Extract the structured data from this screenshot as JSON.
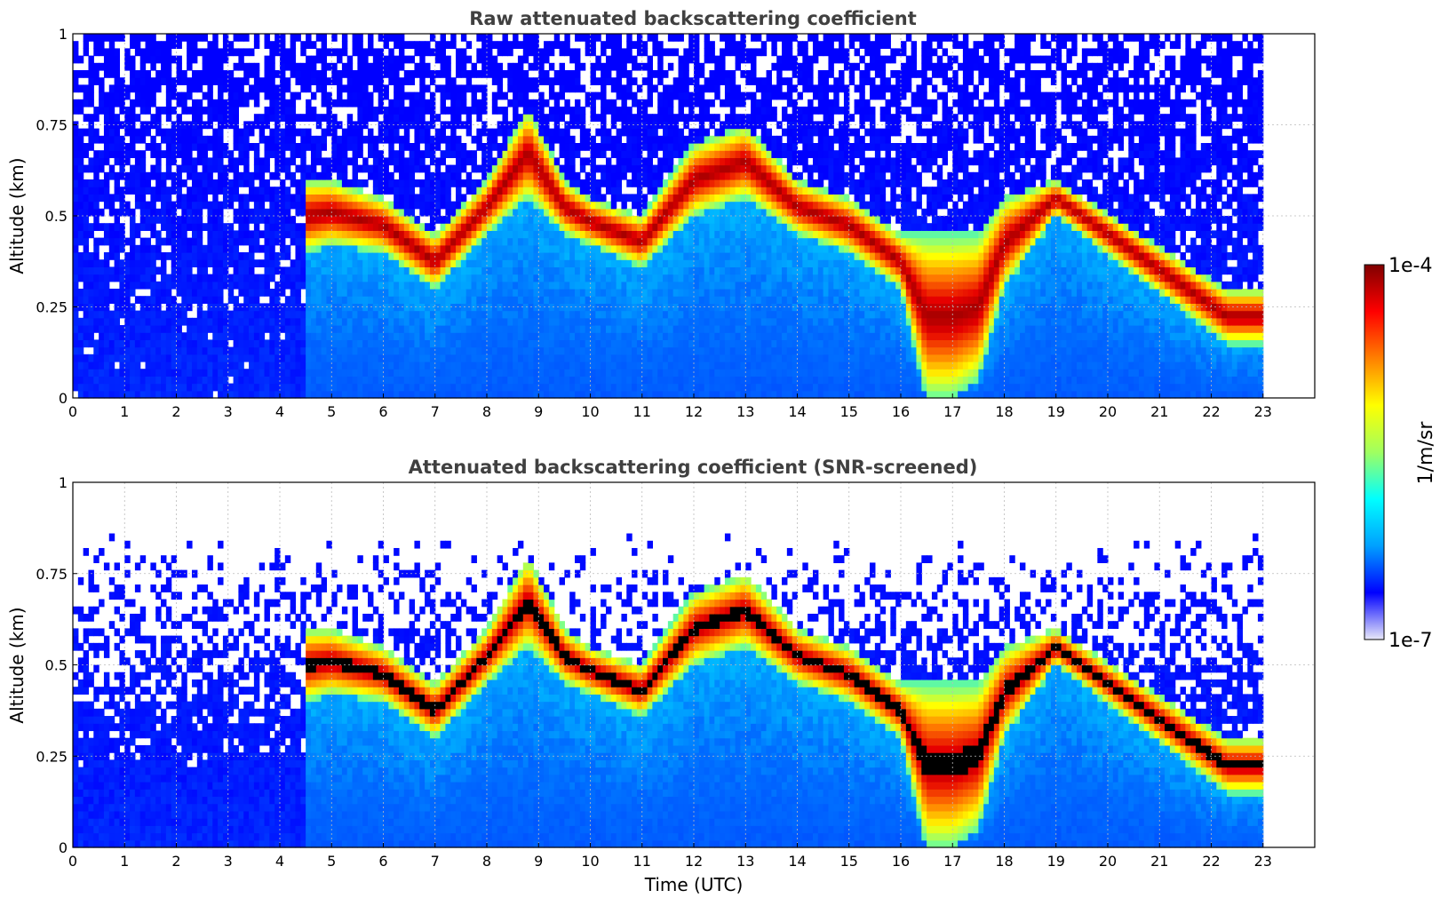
{
  "chart_data": [
    {
      "type": "heatmap",
      "id": "raw",
      "title": "Raw attenuated backscattering coefficient",
      "ylabel": "Altitude (km)",
      "xlabel": "",
      "xlim": [
        0,
        24
      ],
      "ylim": [
        0,
        1
      ],
      "x_ticks": [
        "0",
        "1",
        "2",
        "3",
        "4",
        "5",
        "6",
        "7",
        "8",
        "9",
        "10",
        "11",
        "12",
        "13",
        "14",
        "15",
        "16",
        "17",
        "18",
        "19",
        "20",
        "21",
        "22",
        "23"
      ],
      "y_ticks": [
        "0",
        "0.25",
        "0.5",
        "0.75",
        "1"
      ],
      "grid": true,
      "screened": false,
      "data_end_hour": 23,
      "layers": [
        {
          "t": [
            0,
            1,
            2,
            3,
            4,
            4.5,
            5,
            6,
            7,
            8,
            8.8,
            9.5,
            10,
            11,
            12,
            13,
            14,
            15,
            16,
            16.5,
            17,
            17.5,
            18,
            19,
            22.3,
            23
          ],
          "base_km": [
            null,
            null,
            null,
            null,
            null,
            0.4,
            0.42,
            0.4,
            0.3,
            0.45,
            0.55,
            0.45,
            0.42,
            0.36,
            0.5,
            0.55,
            0.45,
            0.4,
            0.3,
            0.0,
            0.0,
            0.05,
            0.3,
            0.5,
            0.15,
            0.15
          ]
        },
        {
          "t": [
            0,
            1,
            2,
            3,
            4,
            4.5,
            5,
            6,
            7,
            8,
            8.8,
            9.5,
            10,
            11,
            12,
            13,
            14,
            15,
            16,
            16.5,
            17,
            17.5,
            18,
            19,
            22.3,
            23
          ],
          "top_km": [
            null,
            null,
            null,
            null,
            null,
            0.6,
            0.6,
            0.55,
            0.45,
            0.6,
            0.8,
            0.6,
            0.55,
            0.5,
            0.7,
            0.75,
            0.6,
            0.55,
            0.45,
            0.45,
            0.45,
            0.45,
            0.55,
            0.6,
            0.3,
            0.3
          ]
        }
      ]
    },
    {
      "type": "heatmap",
      "id": "screened",
      "title": "Attenuated backscattering coefficient (SNR-screened)",
      "ylabel": "Altitude (km)",
      "xlabel": "Time (UTC)",
      "xlim": [
        0,
        24
      ],
      "ylim": [
        0,
        1
      ],
      "x_ticks": [
        "0",
        "1",
        "2",
        "3",
        "4",
        "5",
        "6",
        "7",
        "8",
        "9",
        "10",
        "11",
        "12",
        "13",
        "14",
        "15",
        "16",
        "17",
        "18",
        "19",
        "20",
        "21",
        "22",
        "23"
      ],
      "y_ticks": [
        "0",
        "0.25",
        "0.5",
        "0.75",
        "1"
      ],
      "grid": true,
      "screened": true,
      "data_end_hour": 23
    }
  ],
  "colorbar": {
    "label": "1/m/sr",
    "max_label": "1e-4",
    "min_label": "1e-7",
    "scale": "log",
    "colormap": "jet",
    "colors": [
      "#e8e8f8",
      "#0000ff",
      "#00a0ff",
      "#00ffff",
      "#a0ff60",
      "#ffff00",
      "#ff8000",
      "#ff0000",
      "#800000"
    ]
  }
}
